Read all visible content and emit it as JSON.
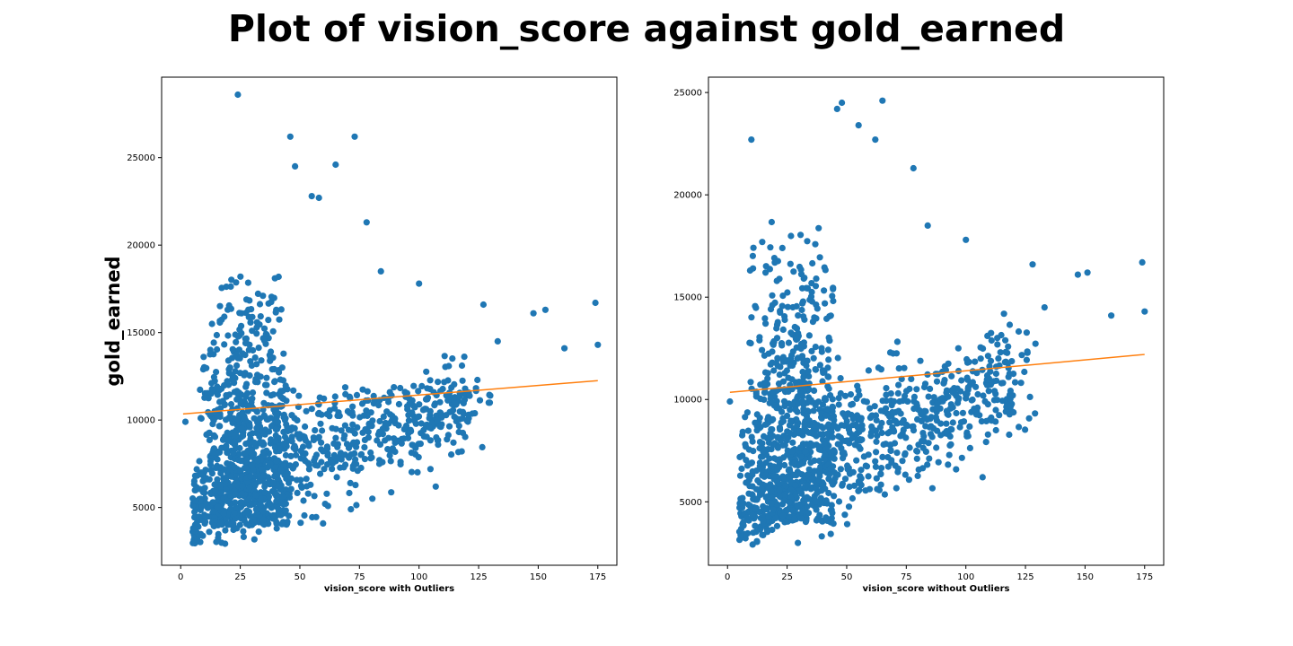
{
  "title": "Plot of vision_score against gold_earned",
  "colors": {
    "points": "#1f77b4",
    "fit_line": "#ff7f0e",
    "axes": "#000000"
  },
  "chart_data": [
    {
      "type": "scatter",
      "xlabel": "vision_score with Outliers",
      "ylabel": "gold_earned",
      "xlim": [
        -8,
        183
      ],
      "ylim": [
        1700,
        29600
      ],
      "xticks": [
        0,
        25,
        50,
        75,
        100,
        125,
        150,
        175
      ],
      "yticks": [
        5000,
        10000,
        15000,
        20000,
        25000
      ],
      "grid": false,
      "fit_line": {
        "x": [
          1,
          175
        ],
        "y": [
          10350,
          12250
        ]
      },
      "outlier_points": [
        [
          24,
          28600
        ],
        [
          46,
          26200
        ],
        [
          73,
          26200
        ],
        [
          65,
          24600
        ],
        [
          48,
          24500
        ],
        [
          55,
          22800
        ],
        [
          58,
          22700
        ],
        [
          78,
          21300
        ],
        [
          84,
          18500
        ],
        [
          100,
          17800
        ],
        [
          174,
          16700
        ],
        [
          153,
          16300
        ],
        [
          148,
          16100
        ],
        [
          127,
          16600
        ],
        [
          133,
          14500
        ],
        [
          175,
          14300
        ],
        [
          161,
          14100
        ],
        [
          107,
          6200
        ],
        [
          2,
          9900
        ]
      ],
      "point_count": 1400
    },
    {
      "type": "scatter",
      "xlabel": "vision_score without Outliers",
      "ylabel": "",
      "xlim": [
        -8,
        183
      ],
      "ylim": [
        1900,
        25750
      ],
      "xticks": [
        0,
        25,
        50,
        75,
        100,
        125,
        150,
        175
      ],
      "yticks": [
        5000,
        10000,
        15000,
        20000,
        25000
      ],
      "grid": false,
      "fit_line": {
        "x": [
          1,
          175
        ],
        "y": [
          10350,
          12200
        ]
      },
      "outlier_points": [
        [
          48,
          24500
        ],
        [
          65,
          24600
        ],
        [
          46,
          24200
        ],
        [
          55,
          23400
        ],
        [
          62,
          22700
        ],
        [
          10,
          22700
        ],
        [
          78,
          21300
        ],
        [
          84,
          18500
        ],
        [
          100,
          17800
        ],
        [
          174,
          16700
        ],
        [
          151,
          16200
        ],
        [
          147,
          16100
        ],
        [
          128,
          16600
        ],
        [
          133,
          14500
        ],
        [
          175,
          14300
        ],
        [
          161,
          14100
        ],
        [
          107,
          6200
        ],
        [
          1,
          9900
        ]
      ],
      "point_count": 1400
    }
  ]
}
